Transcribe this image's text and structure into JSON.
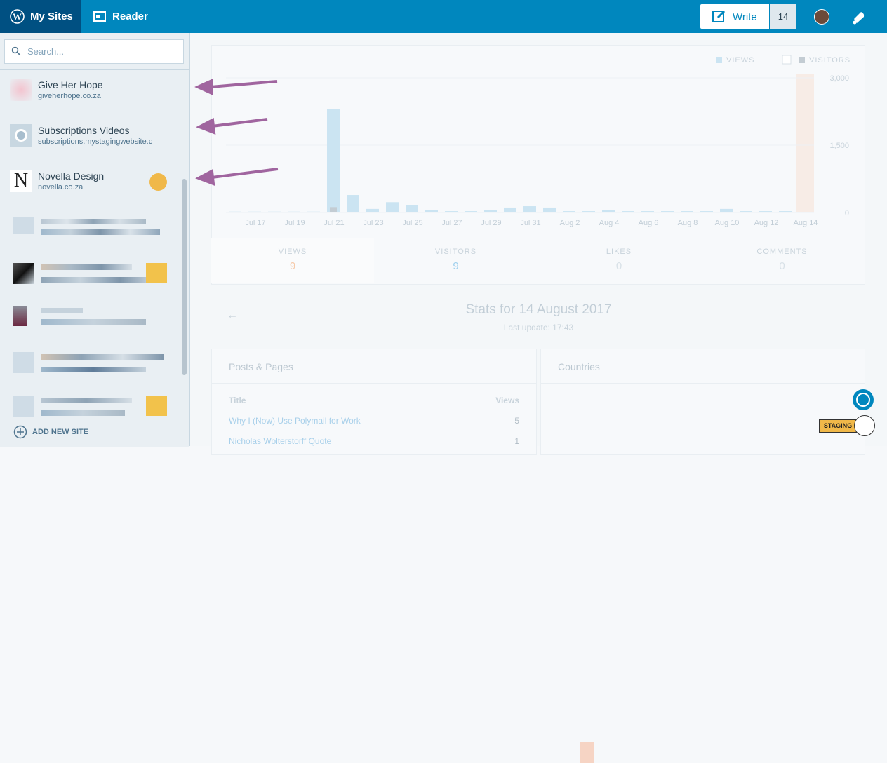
{
  "masterbar": {
    "my_sites": "My Sites",
    "reader": "Reader",
    "write": "Write",
    "notifications_count": "14"
  },
  "sidebar": {
    "search_placeholder": "Search...",
    "sites": [
      {
        "name": "Give Her Hope",
        "url": "giveherhope.co.za"
      },
      {
        "name": "Subscriptions Videos",
        "url": "subscriptions.mystagingwebsite.c"
      },
      {
        "name": "Novella Design",
        "url": "novella.co.za"
      }
    ],
    "add_new_site": "ADD NEW SITE"
  },
  "stats": {
    "chart": {
      "type": "bar",
      "legend": [
        "VIEWS",
        "VISITORS"
      ],
      "categories": [
        null,
        "Jul 17",
        null,
        "Jul 19",
        null,
        "Jul 21",
        null,
        "Jul 23",
        null,
        "Jul 25",
        null,
        "Jul 27",
        null,
        "Jul 29",
        null,
        "Jul 31",
        null,
        "Aug 2",
        null,
        "Aug 4",
        null,
        "Aug 6",
        null,
        "Aug 8",
        null,
        "Aug 10",
        null,
        "Aug 12",
        null,
        "Aug 14"
      ],
      "series": [
        {
          "name": "VIEWS",
          "color": "#cbe4f2",
          "values": [
            20,
            20,
            20,
            20,
            20,
            2300,
            390,
            80,
            230,
            170,
            50,
            30,
            30,
            50,
            110,
            140,
            110,
            30,
            30,
            50,
            30,
            30,
            30,
            30,
            30,
            80,
            30,
            30,
            30,
            9
          ]
        },
        {
          "name": "VISITORS",
          "color": "#c3ccd3",
          "values": [
            10,
            10,
            10,
            10,
            10,
            120,
            10,
            10,
            10,
            10,
            10,
            10,
            10,
            10,
            10,
            10,
            10,
            10,
            10,
            10,
            10,
            10,
            10,
            10,
            10,
            10,
            10,
            10,
            10,
            9
          ]
        }
      ],
      "highlight_color": "#f6dccb",
      "ylim": [
        0,
        3000
      ],
      "yticks": [
        0,
        {
          "value": 1500,
          "label": "1,500"
        },
        {
          "value": 3000,
          "label": "3,000"
        }
      ]
    },
    "summary": [
      {
        "label": "VIEWS",
        "value": 9
      },
      {
        "label": "VISITORS",
        "value": 9
      },
      {
        "label": "LIKES",
        "value": 0
      },
      {
        "label": "COMMENTS",
        "value": 0
      }
    ],
    "heading": "Stats for 14 August 2017",
    "last_update": "Last update: 17:43",
    "posts": {
      "title": "Posts & Pages",
      "col_title": "Title",
      "col_views": "Views",
      "rows": [
        [
          "Why I (Now) Use Polymail for Work",
          5
        ],
        [
          "Nicholas Wolterstorff Quote",
          1
        ]
      ]
    },
    "countries": "Countries",
    "staging": "STAGING"
  }
}
